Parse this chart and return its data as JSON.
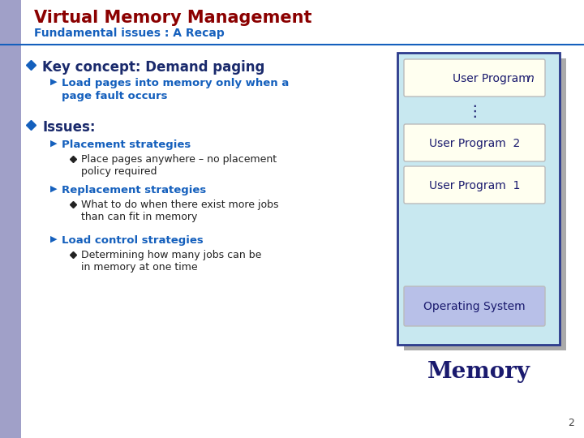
{
  "title": "Virtual Memory Management",
  "subtitle": "Fundamental issues : A Recap",
  "title_color": "#8B0000",
  "subtitle_color": "#1560BD",
  "bg_color": "#FFFFFF",
  "left_bar_color": "#A0A0C8",
  "slide_num": "2",
  "bullet1_text": "Key concept: Demand paging",
  "bullet1_sub1": "Load pages into memory only when a",
  "bullet1_sub2": "page fault occurs",
  "bullet2_text": "Issues:",
  "sub1_text": "Placement strategies",
  "sub1_detail1": "Place pages anywhere – no placement",
  "sub1_detail2": "policy required",
  "sub2_text": "Replacement strategies",
  "sub2_detail1": "What to do when there exist more jobs",
  "sub2_detail2": "than can fit in memory",
  "sub3_text": "Load control strategies",
  "sub3_detail1": "Determining how many jobs can be",
  "sub3_detail2": "in memory at one time",
  "diagram_outer_bg": "#C8E8F0",
  "diagram_outer_border": "#2B3A8C",
  "diagram_box_bg": "#FFFFF0",
  "diagram_os_bg": "#B8C0E8",
  "diagram_text_color": "#1A1A6E",
  "memory_text_color": "#1A1A6E",
  "blue_bullet_color": "#1560BD",
  "blue_text": "#1560BD",
  "dark_navy": "#1A2A6C",
  "black_text": "#222222",
  "shadow_color": "#AAAAAA"
}
